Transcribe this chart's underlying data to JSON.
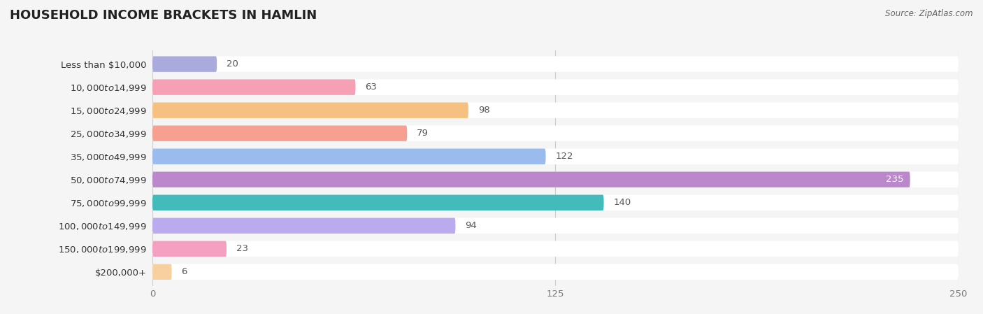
{
  "title": "HOUSEHOLD INCOME BRACKETS IN HAMLIN",
  "source": "Source: ZipAtlas.com",
  "categories": [
    "Less than $10,000",
    "$10,000 to $14,999",
    "$15,000 to $24,999",
    "$25,000 to $34,999",
    "$35,000 to $49,999",
    "$50,000 to $74,999",
    "$75,000 to $99,999",
    "$100,000 to $149,999",
    "$150,000 to $199,999",
    "$200,000+"
  ],
  "values": [
    20,
    63,
    98,
    79,
    122,
    235,
    140,
    94,
    23,
    6
  ],
  "bar_colors": [
    "#aaaadd",
    "#f5a0b5",
    "#f5c080",
    "#f5a090",
    "#99bbee",
    "#bb88cc",
    "#44bbbb",
    "#bbaaee",
    "#f5a0c0",
    "#f8d0a0"
  ],
  "xlim": [
    0,
    250
  ],
  "xticks": [
    0,
    125,
    250
  ],
  "background_color": "#f5f5f5",
  "row_bg_color": "#ffffff",
  "title_fontsize": 13,
  "label_fontsize": 9.5,
  "value_fontsize": 9.5,
  "value_inside_color": "#ffffff",
  "value_outside_color": "#555555",
  "label_color": "#333333",
  "grid_color": "#cccccc",
  "source_color": "#666666",
  "title_color": "#222222"
}
